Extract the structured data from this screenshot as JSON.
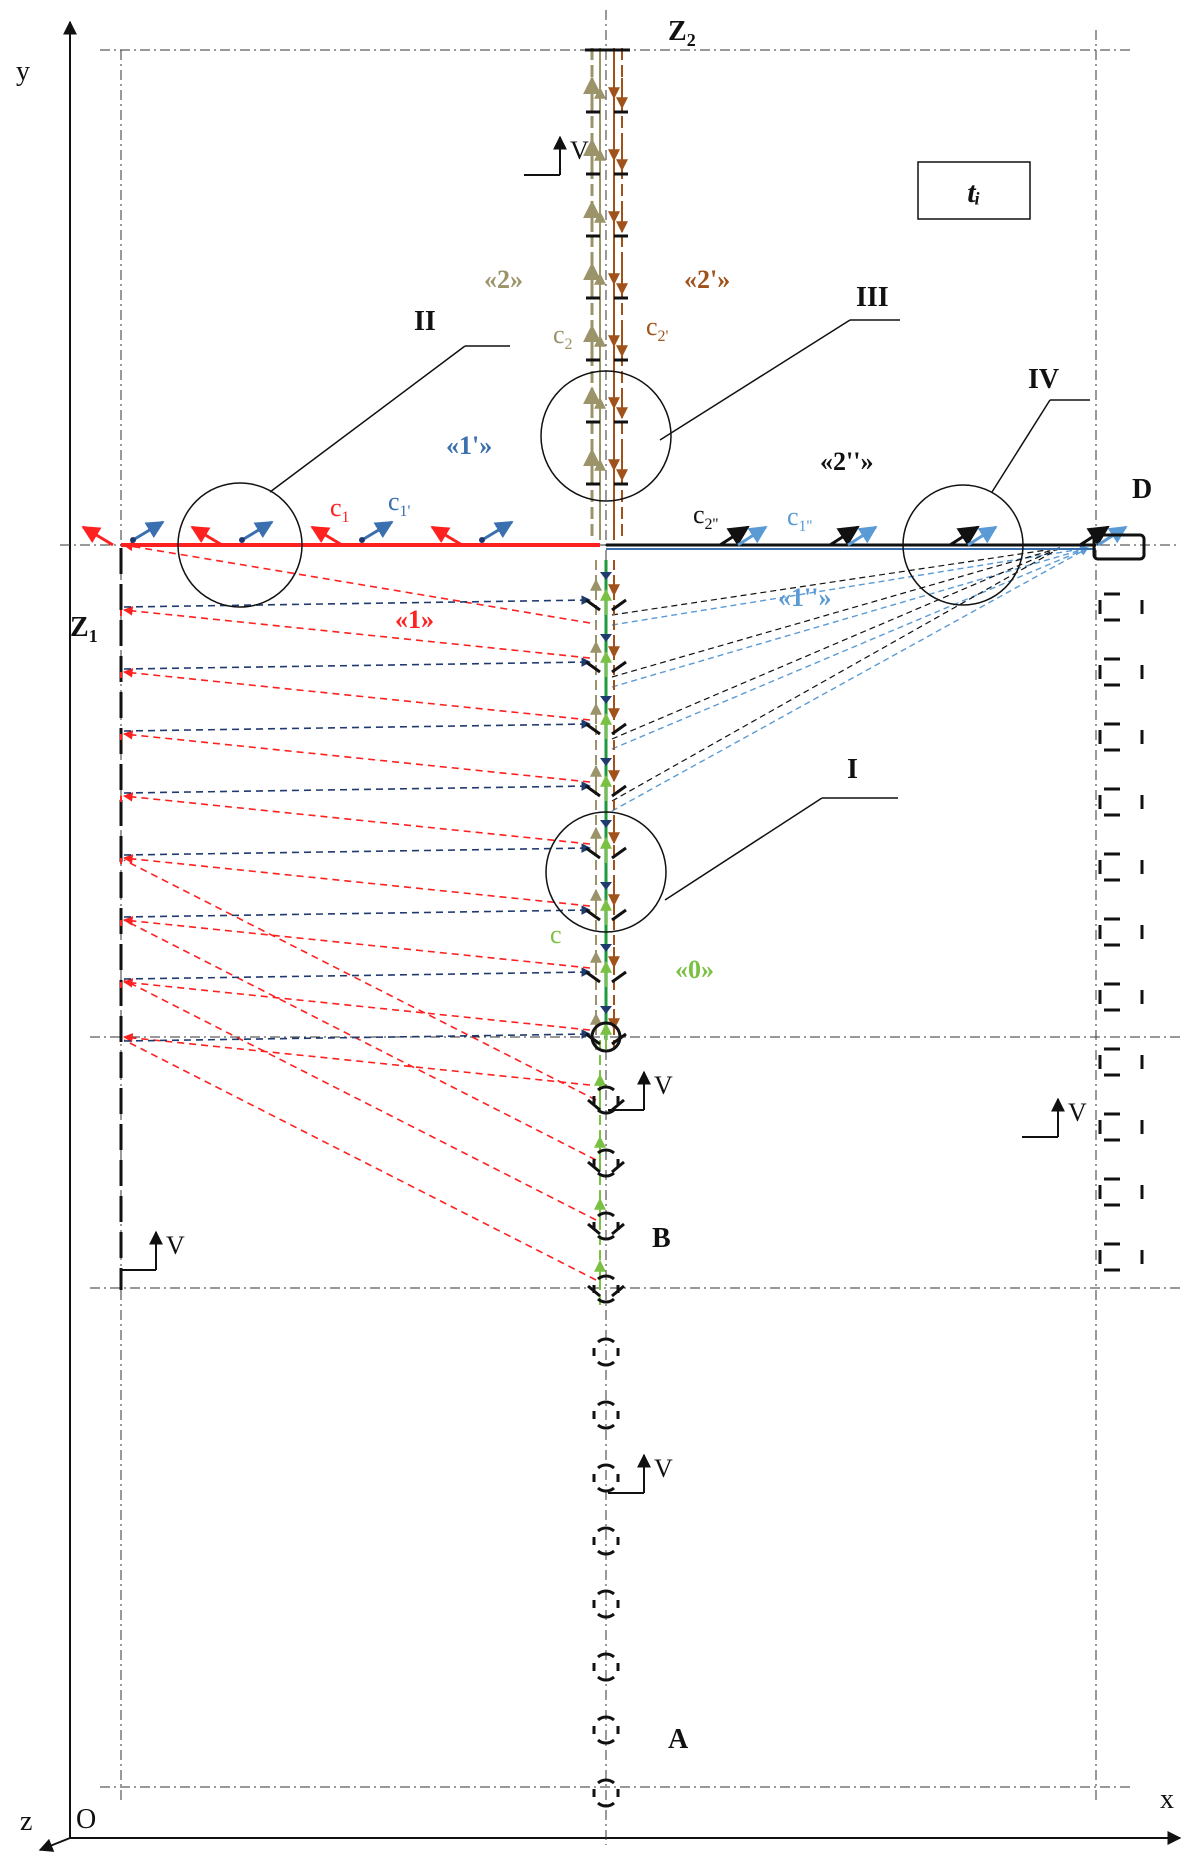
{
  "axes": {
    "x": "x",
    "y": "y",
    "z": "z",
    "origin": "O"
  },
  "time_label": "tᵢ",
  "points": {
    "z2": "Z",
    "z2_sub": "2",
    "z1": "Z",
    "z1_sub": "1",
    "d": "D",
    "b": "B",
    "a": "A"
  },
  "velocity_label": "V",
  "regions": {
    "I": "I",
    "II": "II",
    "III": "III",
    "IV": "IV"
  },
  "waves": {
    "w0": "«0»",
    "w1": "«1»",
    "w1p": "«1'»",
    "w1pp": "«1''»",
    "w2": "«2»",
    "w2p": "«2'»",
    "w2pp": "«2''»"
  },
  "speeds": {
    "c": "c",
    "c1": "c",
    "c1_sub": "1",
    "c1p": "c",
    "c1p_sub": "1'",
    "c1pp": "c",
    "c1pp_sub": "1''",
    "c2": "c",
    "c2_sub": "2",
    "c2p": "c",
    "c2p_sub": "2'",
    "c2pp": "c",
    "c2pp_sub": "2''"
  },
  "colors": {
    "red": "#ff2020",
    "navy": "#1f3a6e",
    "steel": "#3a6fb0",
    "lightblue": "#5b9bd5",
    "olive": "#9b9369",
    "brown": "#a0521a",
    "green": "#7ac143",
    "darkgreen": "#1e9a3c",
    "black": "#111111"
  }
}
